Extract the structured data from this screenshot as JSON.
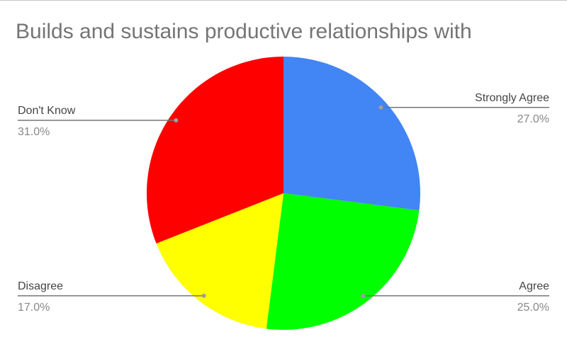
{
  "chart_data": {
    "type": "pie",
    "title": "Builds and sustains productive relationships with",
    "categories": [
      "Strongly Agree",
      "Agree",
      "Disagree",
      "Don't Know"
    ],
    "values": [
      27,
      25,
      17,
      31
    ],
    "value_labels": [
      "27.0%",
      "25.0%",
      "17.0%",
      "31.0%"
    ],
    "colors": [
      "#4285f4",
      "#00ff00",
      "#ffff00",
      "#ff0000"
    ]
  }
}
